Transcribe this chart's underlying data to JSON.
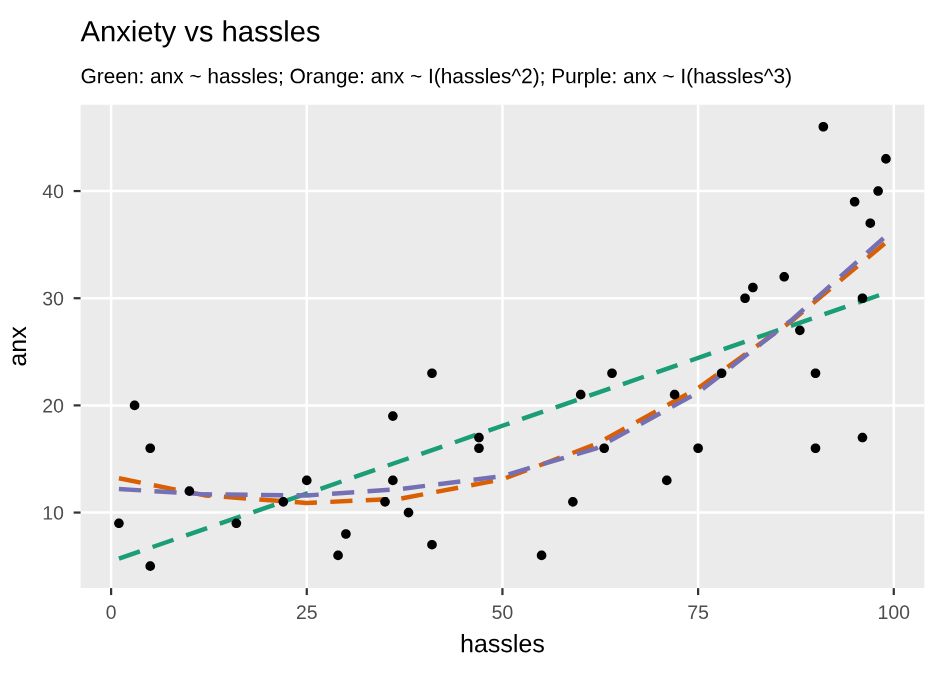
{
  "chart_data": {
    "type": "scatter",
    "title": "Anxiety vs hassles",
    "subtitle": "Green: anx ~ hassles; Orange: anx ~ I(hassles^2); Purple: anx ~ I(hassles^3)",
    "xlabel": "hassles",
    "ylabel": "anx",
    "xlim": [
      -3.9,
      103.9
    ],
    "ylim": [
      2.95,
      48.05
    ],
    "xticks": [
      0,
      25,
      50,
      75,
      100
    ],
    "yticks": [
      10,
      20,
      30,
      40
    ],
    "grid": true,
    "series": [
      {
        "marker": "circle",
        "color": "#000000",
        "x": [
          1,
          3,
          5,
          5,
          10,
          16,
          22,
          25,
          29,
          30,
          35,
          36,
          36,
          38,
          41,
          41,
          47,
          47,
          55,
          59,
          60,
          63,
          64,
          71,
          72,
          75,
          78,
          81,
          82,
          86,
          88,
          90,
          90,
          91,
          95,
          96,
          96,
          97,
          98,
          99
        ],
        "values": [
          9,
          20,
          16,
          5,
          12,
          9,
          11,
          13,
          6,
          8,
          11,
          19,
          13,
          10,
          23,
          7,
          17,
          16,
          6,
          11,
          21,
          16,
          23,
          13,
          21,
          16,
          23,
          30,
          31,
          32,
          27,
          23,
          16,
          46,
          39,
          30,
          17,
          37,
          40,
          43
        ]
      },
      {
        "type": "line",
        "line_style": "dashed",
        "color": "#1b9e77",
        "x": [
          1,
          50,
          99
        ],
        "values": [
          5.7,
          18.1,
          30.5
        ]
      },
      {
        "type": "line",
        "line_style": "dashed",
        "color": "#d95f02",
        "x": [
          1,
          12,
          25,
          37,
          50,
          62,
          75,
          87,
          99
        ],
        "values": [
          13.2,
          11.6,
          10.9,
          11.3,
          13.1,
          16.4,
          21.6,
          27.9,
          35.2
        ]
      },
      {
        "type": "line",
        "line_style": "dashed",
        "color": "#7570b3",
        "x": [
          1,
          12,
          25,
          37,
          50,
          62,
          75,
          87,
          99
        ],
        "values": [
          12.2,
          11.7,
          11.6,
          12.2,
          13.4,
          16.0,
          21.2,
          28.0,
          35.8
        ]
      }
    ]
  }
}
